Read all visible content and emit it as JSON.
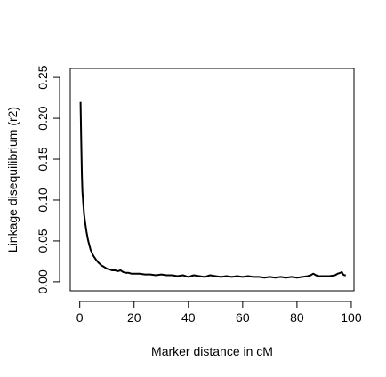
{
  "chart_data": {
    "type": "line",
    "title": "",
    "xlabel": "Marker distance in cM",
    "ylabel": "Linkage disequilibrium (r2)",
    "xlim": [
      -3.5,
      101
    ],
    "ylim": [
      -0.011,
      0.261
    ],
    "xticks": [
      0,
      20,
      40,
      60,
      80,
      100
    ],
    "xtick_labels": [
      "0",
      "20",
      "40",
      "60",
      "80",
      "100"
    ],
    "yticks": [
      0.0,
      0.05,
      0.1,
      0.15,
      0.2,
      0.25
    ],
    "ytick_labels": [
      "0.00",
      "0.05",
      "0.10",
      "0.15",
      "0.20",
      "0.25"
    ],
    "grid": false,
    "legend": "none",
    "series": [
      {
        "color": "#000000",
        "x": [
          0.3,
          0.5,
          0.8,
          1.0,
          1.3,
          1.6,
          2.0,
          2.5,
          3.0,
          3.5,
          4.0,
          5.0,
          6.0,
          7.0,
          8.0,
          9.0,
          10.0,
          11.0,
          12.0,
          13.0,
          14.0,
          15.0,
          16.0,
          17.0,
          18.0,
          19.0,
          20.0,
          22.0,
          24.0,
          26.0,
          28.0,
          30.0,
          32.0,
          34.0,
          36.0,
          38.0,
          40.0,
          42.0,
          44.0,
          46.0,
          48.0,
          50.0,
          52.0,
          54.0,
          56.0,
          58.0,
          60.0,
          62.0,
          64.0,
          66.0,
          68.0,
          70.0,
          72.0,
          74.0,
          76.0,
          78.0,
          80.0,
          82.0,
          84.0,
          85.0,
          86.0,
          87.0,
          88.0,
          90.0,
          92.0,
          94.0,
          95.0,
          96.0,
          96.5,
          97.0,
          97.5,
          98.0
        ],
        "y": [
          0.22,
          0.18,
          0.13,
          0.11,
          0.095,
          0.082,
          0.072,
          0.061,
          0.052,
          0.045,
          0.039,
          0.032,
          0.027,
          0.023,
          0.02,
          0.018,
          0.016,
          0.015,
          0.014,
          0.014,
          0.013,
          0.014,
          0.012,
          0.011,
          0.011,
          0.01,
          0.01,
          0.01,
          0.009,
          0.009,
          0.008,
          0.009,
          0.008,
          0.008,
          0.007,
          0.008,
          0.006,
          0.008,
          0.007,
          0.006,
          0.008,
          0.007,
          0.006,
          0.007,
          0.006,
          0.007,
          0.006,
          0.007,
          0.006,
          0.006,
          0.005,
          0.006,
          0.005,
          0.006,
          0.005,
          0.006,
          0.005,
          0.006,
          0.007,
          0.008,
          0.01,
          0.008,
          0.007,
          0.007,
          0.007,
          0.008,
          0.01,
          0.011,
          0.012,
          0.009,
          0.008,
          0.008
        ]
      }
    ]
  }
}
